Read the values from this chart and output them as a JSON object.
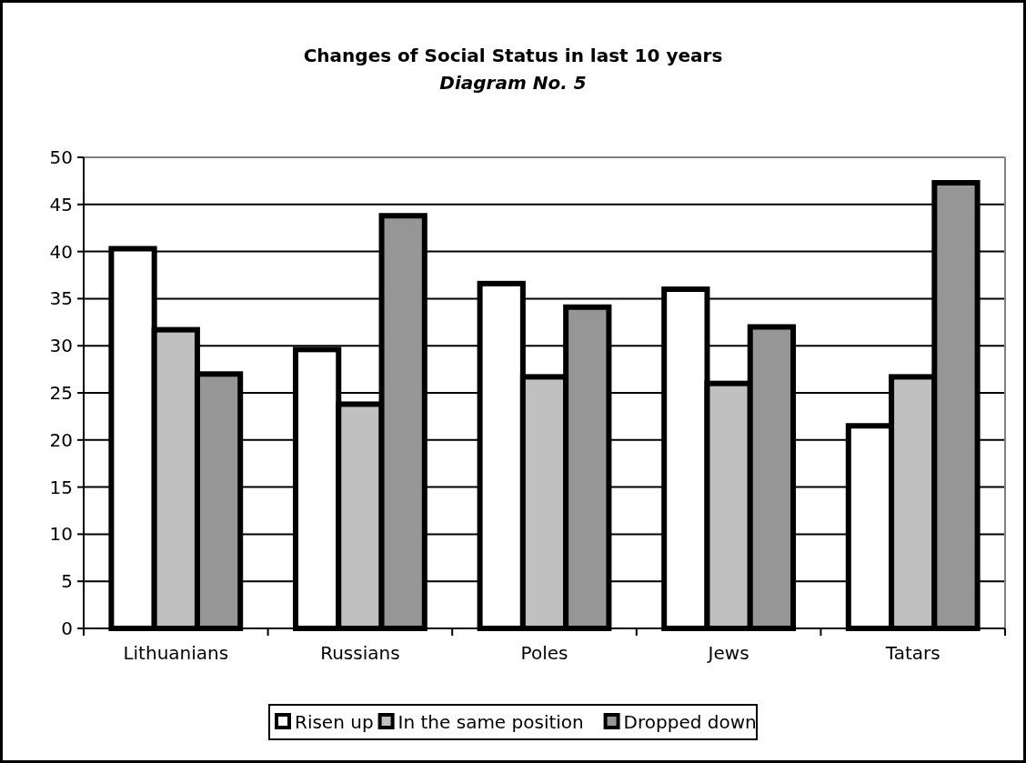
{
  "chart_data": {
    "type": "bar",
    "title": "Changes of Social Status in last 10 years",
    "subtitle": "Diagram No. 5",
    "categories": [
      "Lithuanians",
      "Russians",
      "Poles",
      "Jews",
      "Tatars"
    ],
    "series": [
      {
        "name": "Risen up",
        "color": "#ffffff",
        "values": [
          40.3,
          29.6,
          36.6,
          36.0,
          21.5
        ]
      },
      {
        "name": "In the same position",
        "color": "#c0c0c0",
        "values": [
          31.7,
          23.8,
          26.7,
          26.0,
          26.7
        ]
      },
      {
        "name": "Dropped down",
        "color": "#969696",
        "values": [
          27.0,
          43.8,
          34.1,
          32.0,
          47.3
        ]
      }
    ],
    "ylim": [
      0,
      50
    ],
    "yticks": [
      0,
      5,
      10,
      15,
      20,
      25,
      30,
      35,
      40,
      45,
      50
    ],
    "grid": "y",
    "legend": "bottom"
  }
}
